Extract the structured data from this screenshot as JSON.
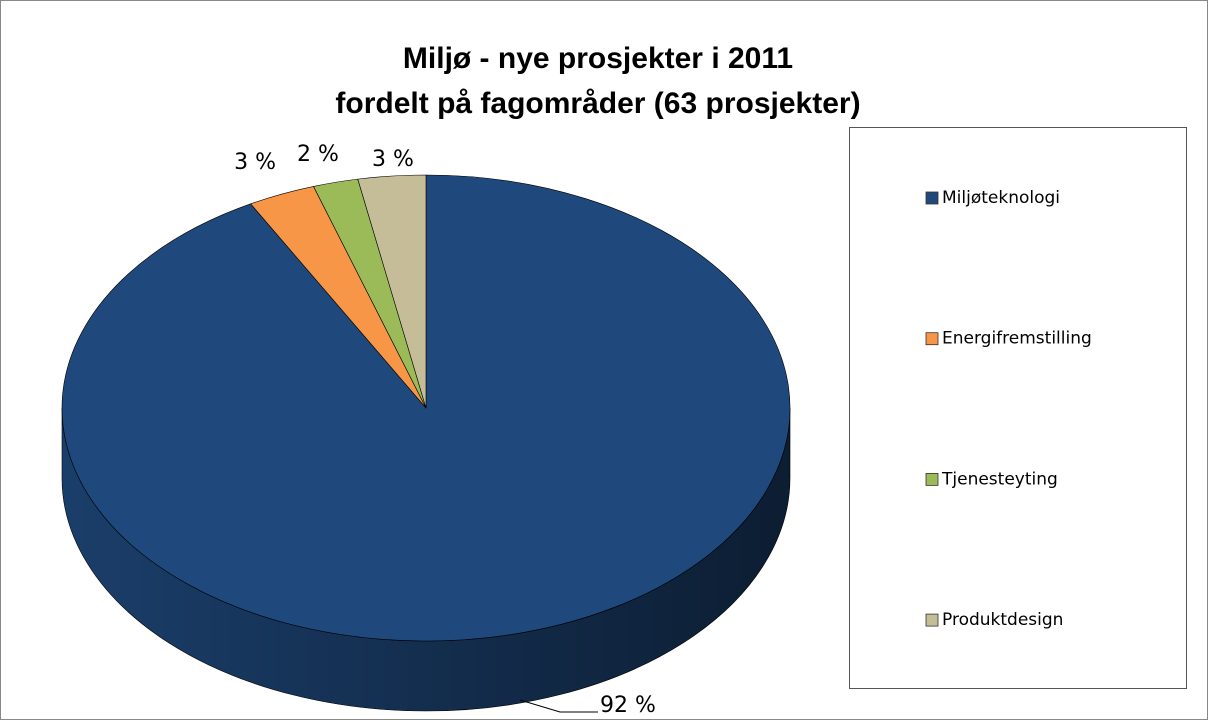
{
  "chart_data": {
    "type": "pie3d",
    "title": [
      "Miljø - nye prosjekter i 2011",
      "fordelt på fagområder (63 prosjekter)"
    ],
    "categories": [
      "Miljøteknologi",
      "Energifremstilling",
      "Tjenesteyting",
      "Produktdesign"
    ],
    "values": [
      92,
      3,
      2,
      3
    ],
    "value_labels": [
      "92 %",
      "3 %",
      "2 %",
      "3 %"
    ],
    "colors": [
      "#1f497d",
      "#f79646",
      "#9bbb59",
      "#c4bd97"
    ],
    "legend": "right"
  }
}
